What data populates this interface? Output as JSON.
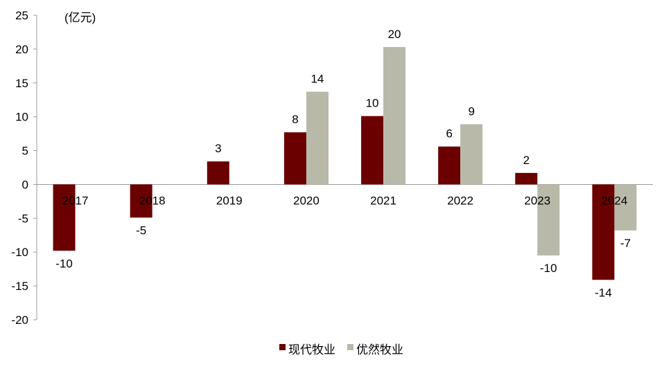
{
  "chart_data": {
    "type": "bar",
    "unit_label": "(亿元)",
    "categories": [
      "2017",
      "2018",
      "2019",
      "2020",
      "2021",
      "2022",
      "2023",
      "2024"
    ],
    "series": [
      {
        "name": "现代牧业",
        "color": "#6b0000",
        "values": [
          -9.8,
          -4.9,
          3.4,
          7.7,
          10.1,
          5.6,
          1.7,
          -14.1
        ],
        "labels": [
          "-10",
          "-5",
          "3",
          "8",
          "10",
          "6",
          "2",
          "-14"
        ]
      },
      {
        "name": "优然牧业",
        "color": "#b9b9a9",
        "values": [
          null,
          null,
          null,
          13.7,
          20.3,
          8.9,
          -10.5,
          -6.8
        ],
        "labels": [
          null,
          null,
          null,
          "14",
          "20",
          "9",
          "-10",
          "-7"
        ]
      }
    ],
    "y_ticks": [
      25,
      20,
      15,
      10,
      5,
      0,
      -5,
      -10,
      -15,
      -20
    ],
    "ylim": [
      -20,
      25
    ],
    "grid": false,
    "legend_position": "bottom-center"
  }
}
